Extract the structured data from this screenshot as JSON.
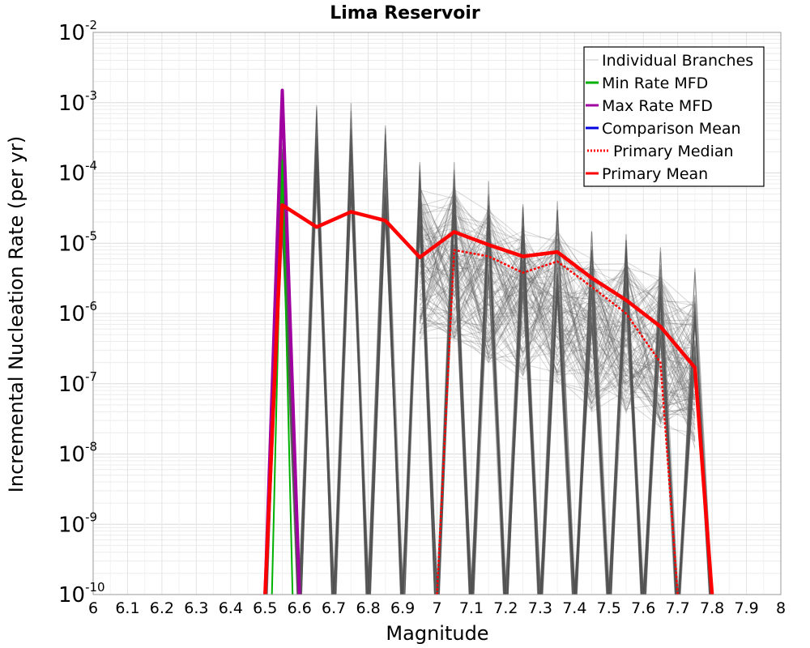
{
  "chart_data": {
    "type": "line",
    "title": "Lima Reservoir",
    "xlabel": "Magnitude",
    "ylabel": "Incremental Nucleation Rate (per yr)",
    "xlim": [
      6,
      8
    ],
    "ylim": [
      1e-10,
      0.01
    ],
    "yscale": "log",
    "grid": true,
    "x_ticks": [
      "6",
      "6.1",
      "6.2",
      "6.3",
      "6.4",
      "6.5",
      "6.6",
      "6.7",
      "6.8",
      "6.9",
      "7",
      "7.1",
      "7.2",
      "7.3",
      "7.4",
      "7.5",
      "7.6",
      "7.7",
      "7.8",
      "7.9",
      "8"
    ],
    "y_ticks": [
      {
        "base": "10",
        "exp": "-2"
      },
      {
        "base": "10",
        "exp": "-3"
      },
      {
        "base": "10",
        "exp": "-4"
      },
      {
        "base": "10",
        "exp": "-5"
      },
      {
        "base": "10",
        "exp": "-6"
      },
      {
        "base": "10",
        "exp": "-7"
      },
      {
        "base": "10",
        "exp": "-8"
      },
      {
        "base": "10",
        "exp": "-9"
      },
      {
        "base": "10",
        "exp": "-10"
      }
    ],
    "legend_position": "top-right",
    "legend": [
      {
        "label": "Individual Branches",
        "color": "#c8c8c8",
        "style": "solid"
      },
      {
        "label": "Min Rate MFD",
        "color": "#00b000",
        "style": "solid"
      },
      {
        "label": "Max Rate MFD",
        "color": "#a000a0",
        "style": "solid"
      },
      {
        "label": "Comparison Mean",
        "color": "#0000e0",
        "style": "solid"
      },
      {
        "label": "Primary Median",
        "color": "#ff0000",
        "style": "dotted"
      },
      {
        "label": "Primary Mean",
        "color": "#ff0000",
        "style": "solid"
      }
    ],
    "series": [
      {
        "name": "Primary Mean",
        "color": "#ff0000",
        "x": [
          6.5,
          6.55,
          6.65,
          6.75,
          6.85,
          6.95,
          7.05,
          7.15,
          7.25,
          7.35,
          7.45,
          7.55,
          7.65,
          7.75,
          7.8
        ],
        "y": [
          1e-10,
          3.5e-05,
          1.7e-05,
          2.8e-05,
          2.1e-05,
          6.3e-06,
          1.45e-05,
          9.5e-06,
          6.5e-06,
          7.5e-06,
          3.2e-06,
          1.55e-06,
          6.5e-07,
          1.7e-07,
          1e-10
        ]
      },
      {
        "name": "Primary Median",
        "color": "#ff0000",
        "x": [
          7.0,
          7.05,
          7.15,
          7.25,
          7.35,
          7.45,
          7.55,
          7.65,
          7.7
        ],
        "y": [
          1e-10,
          8e-06,
          6.5e-06,
          3.8e-06,
          5.5e-06,
          2.4e-06,
          1e-06,
          2e-07,
          1e-10
        ]
      },
      {
        "name": "Max Rate MFD",
        "color": "#a000a0",
        "x": [
          6.5,
          6.55,
          6.6
        ],
        "y": [
          1e-10,
          0.0015,
          1e-10
        ]
      },
      {
        "name": "Min Rate MFD",
        "color": "#00b000",
        "x": [
          6.52,
          6.55,
          6.58
        ],
        "y": [
          1e-10,
          0.00015,
          1e-10
        ]
      }
    ],
    "branch_spikes": [
      {
        "m": 6.55,
        "peak": 0.0003
      },
      {
        "m": 6.65,
        "peak": 0.001
      },
      {
        "m": 6.75,
        "peak": 0.001
      },
      {
        "m": 6.85,
        "peak": 0.00048
      },
      {
        "m": 6.95,
        "peak": 0.00016
      },
      {
        "m": 7.05,
        "peak": 0.00016
      },
      {
        "m": 7.15,
        "peak": 8e-05
      },
      {
        "m": 7.25,
        "peak": 4.5e-05
      },
      {
        "m": 7.35,
        "peak": 4e-05
      },
      {
        "m": 7.45,
        "peak": 1.5e-05
      },
      {
        "m": 7.55,
        "peak": 1.4e-05
      },
      {
        "m": 7.65,
        "peak": 9e-06
      },
      {
        "m": 7.75,
        "peak": 4.5e-06
      }
    ]
  }
}
